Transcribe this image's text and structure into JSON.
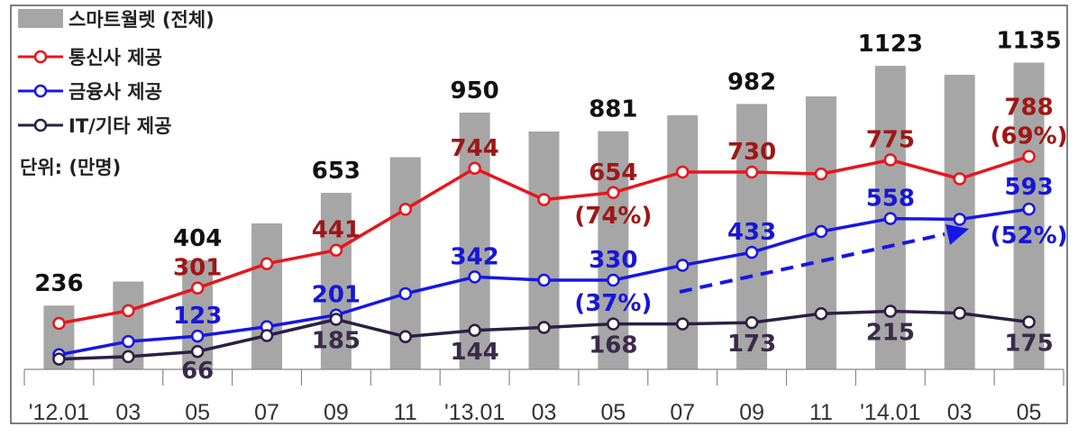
{
  "chart_data": {
    "type": "bar",
    "unit_note": "단위: (만명)",
    "categories": [
      "'12.01",
      "03",
      "05",
      "07",
      "09",
      "11",
      "'13.01",
      "03",
      "05",
      "07",
      "09",
      "11",
      "'14.01",
      "03",
      "05"
    ],
    "ylim": [
      0,
      1200
    ],
    "legend_placement": "top-left",
    "bars": {
      "name": "스마트월렛 (전체)",
      "color": "#a6a6a6",
      "values": [
        236,
        325,
        404,
        540,
        653,
        785,
        950,
        880,
        881,
        940,
        982,
        1010,
        1123,
        1090,
        1135
      ],
      "labels": {
        "0": "236",
        "2": "404",
        "4": "653",
        "6": "950",
        "8": "881",
        "10": "982",
        "12": "1123",
        "14": "1135"
      }
    },
    "series": [
      {
        "name": "통신사 제공",
        "color": "#e8151b",
        "label_color": "#a01616",
        "values": [
          170,
          217,
          301,
          391,
          441,
          592,
          744,
          628,
          654,
          730,
          730,
          723,
          775,
          705,
          788
        ],
        "labels": {
          "2": "301",
          "4": "441",
          "6": "744",
          "8": "654",
          "10": "730",
          "12": "775",
          "14": "788"
        },
        "notes": {
          "8": "(74%)",
          "14": "(69%)"
        }
      },
      {
        "name": "금융사 제공",
        "color": "#1616e6",
        "label_color": "#1616d8",
        "values": [
          54,
          103,
          123,
          158,
          201,
          280,
          342,
          330,
          330,
          385,
          433,
          510,
          558,
          555,
          593
        ],
        "labels": {
          "2": "123",
          "4": "201",
          "6": "342",
          "8": "330",
          "10": "433",
          "12": "558",
          "14": "593"
        },
        "notes": {
          "8": "(37%)",
          "14": "(52%)"
        }
      },
      {
        "name": "IT/기타 제공",
        "color": "#2b1f45",
        "label_color": "#3a2a4a",
        "values": [
          38,
          47,
          66,
          125,
          185,
          121,
          144,
          155,
          168,
          168,
          173,
          206,
          215,
          208,
          175
        ],
        "labels": {
          "2": "66",
          "4": "185",
          "6": "144",
          "8": "168",
          "10": "173",
          "12": "215",
          "14": "175"
        }
      }
    ]
  }
}
